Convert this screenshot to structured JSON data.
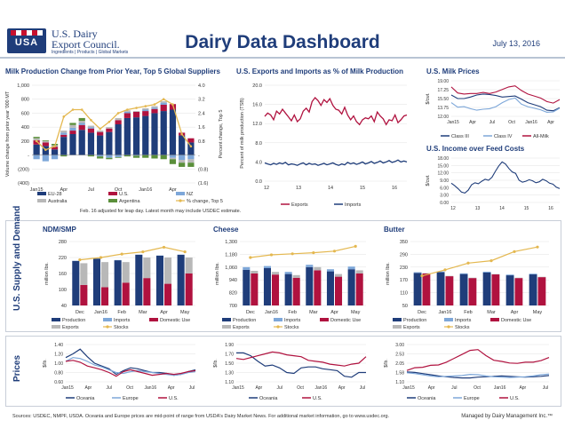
{
  "header": {
    "logo_badge": "USA",
    "logo_line1": "U.S. Dairy",
    "logo_line2": "Export Council.",
    "logo_tagline": "Ingredients | Products | Global Markets",
    "title": "Dairy Data Dashboard",
    "date": "July 13, 2016"
  },
  "sections": {
    "supply_demand": "U.S. Supply and Demand",
    "prices": "Prices"
  },
  "notes": {
    "milk_prod": "Feb. 16 adjusted for leap day. Latest month may include USDEC estimate."
  },
  "footer": {
    "sources": "Sources: USDEC, NMPF, USDA. Oceania and Europe prices are mid-point of range from USDA's Dairy Market News. For additional market information, go to www.usdec.org.",
    "managed": "Managed by Dairy Management Inc.™"
  },
  "colors": {
    "navy": "#1f3d7a",
    "crimson": "#b0123f",
    "lightblue": "#7da7d9",
    "gray": "#b8b8b8",
    "green": "#5a8f3a",
    "gold": "#e4b850"
  },
  "chart_data": [
    {
      "id": "milk_prod",
      "type": "bar",
      "title": "Milk Production Change from Prior Year, Top 5 Global Suppliers",
      "ylabel": "Volume change from prior year '000 MT",
      "y2label": "Percent change, Top 5",
      "ylim": [
        -400,
        1000
      ],
      "yticks": [
        "1,000",
        "800",
        "600",
        "400",
        "200",
        "-",
        "(200)",
        "(400)"
      ],
      "y2lim": [
        -1.6,
        4.0
      ],
      "y2ticks": [
        "4.0",
        "3.2",
        "2.4",
        "1.6",
        "0.8",
        "-",
        "(0.8)",
        "(1.6)"
      ],
      "xticks": [
        "Jan15",
        "Apr",
        "Jul",
        "Oct",
        "Jan16",
        "Apr"
      ],
      "months": 18,
      "series": [
        {
          "name": "EU-28",
          "values": [
            150,
            130,
            80,
            260,
            300,
            360,
            320,
            280,
            330,
            440,
            530,
            540,
            560,
            600,
            630,
            650,
            280,
            180
          ]
        },
        {
          "name": "U.S.",
          "values": [
            60,
            50,
            40,
            30,
            50,
            70,
            60,
            50,
            50,
            60,
            70,
            80,
            70,
            60,
            90,
            80,
            40,
            60
          ]
        },
        {
          "name": "NZ",
          "values": [
            -60,
            -90,
            -60,
            30,
            40,
            30,
            20,
            -20,
            -40,
            -30,
            20,
            -10,
            20,
            20,
            30,
            -40,
            -70,
            -60
          ]
        },
        {
          "name": "Australia",
          "values": [
            30,
            20,
            20,
            30,
            40,
            30,
            20,
            20,
            20,
            30,
            20,
            10,
            20,
            20,
            20,
            -20,
            -40,
            -50
          ]
        },
        {
          "name": "Argentina",
          "values": [
            20,
            10,
            20,
            -20,
            30,
            40,
            -20,
            -30,
            -20,
            -10,
            -20,
            -30,
            -40,
            -50,
            -60,
            -70,
            -60,
            -60
          ]
        },
        {
          "name": "% change, Top 5",
          "values": [
            0.8,
            0.3,
            0.5,
            2.2,
            2.6,
            2.6,
            2.0,
            1.5,
            1.9,
            2.4,
            2.6,
            2.7,
            2.8,
            2.9,
            3.2,
            2.9,
            1.2,
            0.5
          ]
        }
      ]
    },
    {
      "id": "exports_imports",
      "type": "line",
      "title": "U.S. Exports and Imports as % of Milk Production",
      "ylabel": "Percent of milk production (TSB)",
      "ylim": [
        0,
        20
      ],
      "yticks": [
        "20.0",
        "16.0",
        "12.0",
        "8.0",
        "4.0",
        "0.0"
      ],
      "xticks": [
        "12",
        "13",
        "14",
        "15",
        "16"
      ],
      "series": [
        {
          "name": "Exports",
          "values": [
            13.5,
            14.2,
            13.8,
            12.8,
            14.6,
            14.0,
            15.0,
            14.2,
            13.4,
            12.6,
            13.8,
            12.4,
            13.0,
            14.6,
            15.2,
            14.4,
            16.6,
            17.4,
            16.8,
            15.8,
            17.0,
            16.4,
            17.2,
            15.8,
            15.0,
            14.8,
            14.0,
            15.4,
            13.8,
            12.8,
            13.6,
            12.4,
            11.8,
            12.8,
            13.2,
            13.0,
            13.6,
            12.4,
            14.4,
            13.6,
            13.0,
            11.8,
            12.8,
            12.6,
            13.8,
            12.2,
            12.8,
            13.6,
            13.8
          ]
        },
        {
          "name": "Imports",
          "values": [
            3.8,
            3.6,
            3.4,
            3.7,
            3.5,
            3.8,
            3.6,
            3.9,
            3.4,
            3.6,
            3.5,
            3.3,
            3.6,
            3.8,
            3.4,
            3.7,
            3.5,
            3.6,
            3.3,
            3.5,
            3.7,
            3.4,
            3.6,
            3.8,
            3.5,
            3.3,
            3.6,
            3.4,
            3.9,
            3.6,
            3.8,
            3.5,
            3.7,
            4.0,
            3.6,
            3.8,
            4.1,
            3.7,
            3.9,
            4.2,
            3.8,
            4.0,
            4.3,
            3.9,
            4.1,
            4.4,
            4.0,
            4.2,
            4.0
          ]
        }
      ]
    },
    {
      "id": "milk_prices",
      "type": "line",
      "title": "U.S. Milk Prices",
      "ylabel": "$/cwt.",
      "ylim": [
        12.0,
        19.0
      ],
      "yticks": [
        "19.00",
        "17.25",
        "15.50",
        "13.75",
        "12.00"
      ],
      "xticks": [
        "Jan15",
        "Apr",
        "Jul",
        "Oct",
        "Jan16",
        "Apr"
      ],
      "series": [
        {
          "name": "Class III",
          "values": [
            16.2,
            15.5,
            15.5,
            15.8,
            16.2,
            16.4,
            16.3,
            16.1,
            15.8,
            15.9,
            16.0,
            15.4,
            14.7,
            14.3,
            13.9,
            13.2,
            13.1,
            13.7
          ]
        },
        {
          "name": "Class IV",
          "values": [
            14.7,
            13.8,
            13.9,
            13.5,
            13.2,
            13.4,
            13.5,
            13.9,
            14.7,
            15.3,
            15.6,
            14.4,
            13.9,
            13.6,
            13.3,
            12.8,
            12.9,
            13.6
          ]
        },
        {
          "name": "All-Milk",
          "values": [
            17.8,
            16.6,
            16.4,
            16.5,
            16.5,
            16.7,
            16.5,
            16.8,
            17.3,
            17.8,
            18.0,
            17.1,
            16.4,
            16.0,
            15.6,
            14.9,
            14.6,
            15.3
          ]
        }
      ]
    },
    {
      "id": "income_feed",
      "type": "line",
      "title": "U.S. Income over Feed Costs",
      "ylabel": "$/cwt.",
      "ylim": [
        0,
        18
      ],
      "yticks": [
        "18.00",
        "15.00",
        "12.00",
        "9.00",
        "6.00",
        "3.00",
        "0.00"
      ],
      "xticks": [
        "12",
        "13",
        "14",
        "15",
        "16"
      ],
      "values": [
        7.8,
        6.8,
        5.6,
        4.2,
        3.8,
        5.0,
        7.2,
        8.0,
        7.6,
        8.6,
        9.4,
        9.0,
        10.2,
        12.6,
        14.8,
        16.4,
        15.6,
        13.8,
        12.4,
        11.8,
        9.0,
        8.2,
        8.6,
        9.2,
        8.8,
        8.0,
        8.4,
        9.4,
        8.8,
        7.8,
        7.4,
        6.2,
        5.6
      ]
    },
    {
      "id": "ndm_smp",
      "type": "bar",
      "title": "NDM/SMP",
      "ylabel": "million lbs.",
      "ylim": [
        0,
        280
      ],
      "yticks": [
        "280",
        "220",
        "160",
        "100",
        "40"
      ],
      "categories": [
        "Dec",
        "Jan16",
        "Feb",
        "Mar",
        "Apr",
        "May"
      ],
      "series": [
        {
          "name": "Production",
          "values": [
            195,
            205,
            198,
            222,
            218,
            222
          ]
        },
        {
          "name": "Imports",
          "values": [
            1,
            1,
            1,
            1,
            1,
            1
          ]
        },
        {
          "name": "Domestic Use",
          "values": [
            90,
            80,
            100,
            120,
            95,
            140
          ]
        },
        {
          "name": "Exports",
          "values": [
            95,
            110,
            90,
            90,
            115,
            70
          ]
        },
        {
          "name": "Stocks",
          "values": [
            200,
            210,
            225,
            235,
            255,
            235
          ]
        }
      ]
    },
    {
      "id": "cheese",
      "type": "bar",
      "title": "Cheese",
      "ylabel": "million lbs.",
      "ylim": [
        700,
        1300
      ],
      "yticks": [
        "1,300",
        "1,180",
        "1,060",
        "940",
        "820",
        "700"
      ],
      "categories": [
        "Dec",
        "Jan16",
        "Feb",
        "Mar",
        "Apr",
        "May"
      ],
      "series": [
        {
          "name": "Production",
          "values": [
            1035,
            1050,
            995,
            1060,
            1020,
            1040
          ]
        },
        {
          "name": "Imports",
          "values": [
            25,
            20,
            20,
            22,
            20,
            25
          ]
        },
        {
          "name": "Domestic Use",
          "values": [
            1000,
            990,
            960,
            1030,
            970,
            1000
          ]
        },
        {
          "name": "Exports",
          "values": [
            25,
            25,
            25,
            30,
            25,
            30
          ]
        },
        {
          "name": "Stocks",
          "values": [
            1150,
            1175,
            1185,
            1195,
            1210,
            1255
          ]
        }
      ]
    },
    {
      "id": "butter",
      "type": "bar",
      "title": "Butter",
      "ylabel": "million lbs.",
      "ylim": [
        0,
        350
      ],
      "yticks": [
        "350",
        "290",
        "230",
        "170",
        "110",
        "50"
      ],
      "categories": [
        "Dec",
        "Jan16",
        "Feb",
        "Mar",
        "Apr",
        "May"
      ],
      "series": [
        {
          "name": "Production",
          "values": [
            178,
            182,
            172,
            180,
            165,
            170
          ]
        },
        {
          "name": "Imports",
          "values": [
            4,
            4,
            4,
            5,
            4,
            4
          ]
        },
        {
          "name": "Domestic Use",
          "values": [
            175,
            160,
            150,
            170,
            150,
            155
          ]
        },
        {
          "name": "Exports",
          "values": [
            2,
            2,
            2,
            2,
            2,
            2
          ]
        },
        {
          "name": "Stocks",
          "values": [
            162,
            195,
            232,
            245,
            295,
            320
          ]
        }
      ]
    },
    {
      "id": "price_ndm",
      "type": "line",
      "ylabel": "$/lb.",
      "ylim": [
        0.6,
        1.4
      ],
      "yticks": [
        "1.40",
        "1.20",
        "1.00",
        "0.80",
        "0.60"
      ],
      "xticks": [
        "Jan15",
        "Apr",
        "Jul",
        "Oct",
        "Jan16",
        "Apr",
        "Jul"
      ],
      "series": [
        {
          "name": "Oceania",
          "values": [
            1.12,
            1.2,
            1.3,
            1.14,
            1.0,
            0.94,
            0.88,
            0.76,
            0.84,
            0.9,
            0.88,
            0.84,
            0.8,
            0.8,
            0.78,
            0.74,
            0.76,
            0.82,
            0.86
          ]
        },
        {
          "name": "Europe",
          "values": [
            1.04,
            1.12,
            1.1,
            1.04,
            0.96,
            0.92,
            0.86,
            0.8,
            0.78,
            0.82,
            0.84,
            0.82,
            0.8,
            0.78,
            0.76,
            0.74,
            0.76,
            0.8,
            0.82
          ]
        },
        {
          "name": "U.S.",
          "values": [
            1.04,
            1.06,
            1.02,
            0.94,
            0.9,
            0.86,
            0.8,
            0.72,
            0.82,
            0.86,
            0.82,
            0.78,
            0.74,
            0.76,
            0.78,
            0.76,
            0.78,
            0.82,
            0.84
          ]
        }
      ]
    },
    {
      "id": "price_cheese",
      "type": "line",
      "ylabel": "$/lb.",
      "ylim": [
        1.1,
        1.9
      ],
      "yticks": [
        "1.90",
        "1.70",
        "1.50",
        "1.30",
        "1.10"
      ],
      "xticks": [
        "Jan15",
        "Apr",
        "Jul",
        "Oct",
        "Jan16",
        "Apr",
        "Jul"
      ],
      "series": [
        {
          "name": "Oceania",
          "values": [
            1.72,
            1.72,
            1.66,
            1.54,
            1.44,
            1.46,
            1.4,
            1.3,
            1.28,
            1.4,
            1.42,
            1.42,
            1.38,
            1.36,
            1.34,
            1.22,
            1.2,
            1.3,
            1.3
          ]
        },
        {
          "name": "U.S.",
          "values": [
            1.6,
            1.58,
            1.62,
            1.66,
            1.7,
            1.74,
            1.72,
            1.68,
            1.66,
            1.64,
            1.56,
            1.54,
            1.52,
            1.48,
            1.46,
            1.44,
            1.48,
            1.5,
            1.64
          ]
        }
      ]
    },
    {
      "id": "price_butter",
      "type": "line",
      "ylabel": "$/lb.",
      "ylim": [
        1.1,
        3.0
      ],
      "yticks": [
        "3.00",
        "2.53",
        "2.05",
        "1.58",
        "1.10"
      ],
      "xticks": [
        "Jan15",
        "Apr",
        "Jul",
        "Oct",
        "Jan16",
        "Apr",
        "Jul"
      ],
      "series": [
        {
          "name": "Oceania",
          "values": [
            1.6,
            1.58,
            1.52,
            1.46,
            1.4,
            1.36,
            1.32,
            1.3,
            1.3,
            1.34,
            1.36,
            1.38,
            1.4,
            1.38,
            1.36,
            1.34,
            1.36,
            1.38,
            1.42
          ]
        },
        {
          "name": "Europe",
          "values": [
            1.56,
            1.52,
            1.46,
            1.4,
            1.36,
            1.38,
            1.4,
            1.42,
            1.48,
            1.46,
            1.4,
            1.36,
            1.34,
            1.32,
            1.34,
            1.36,
            1.4,
            1.46,
            1.5
          ]
        },
        {
          "name": "U.S.",
          "values": [
            1.68,
            1.82,
            1.84,
            1.94,
            1.96,
            2.1,
            2.3,
            2.5,
            2.7,
            2.74,
            2.44,
            2.2,
            2.14,
            2.06,
            2.04,
            2.1,
            2.1,
            2.18,
            2.34
          ]
        }
      ]
    }
  ]
}
